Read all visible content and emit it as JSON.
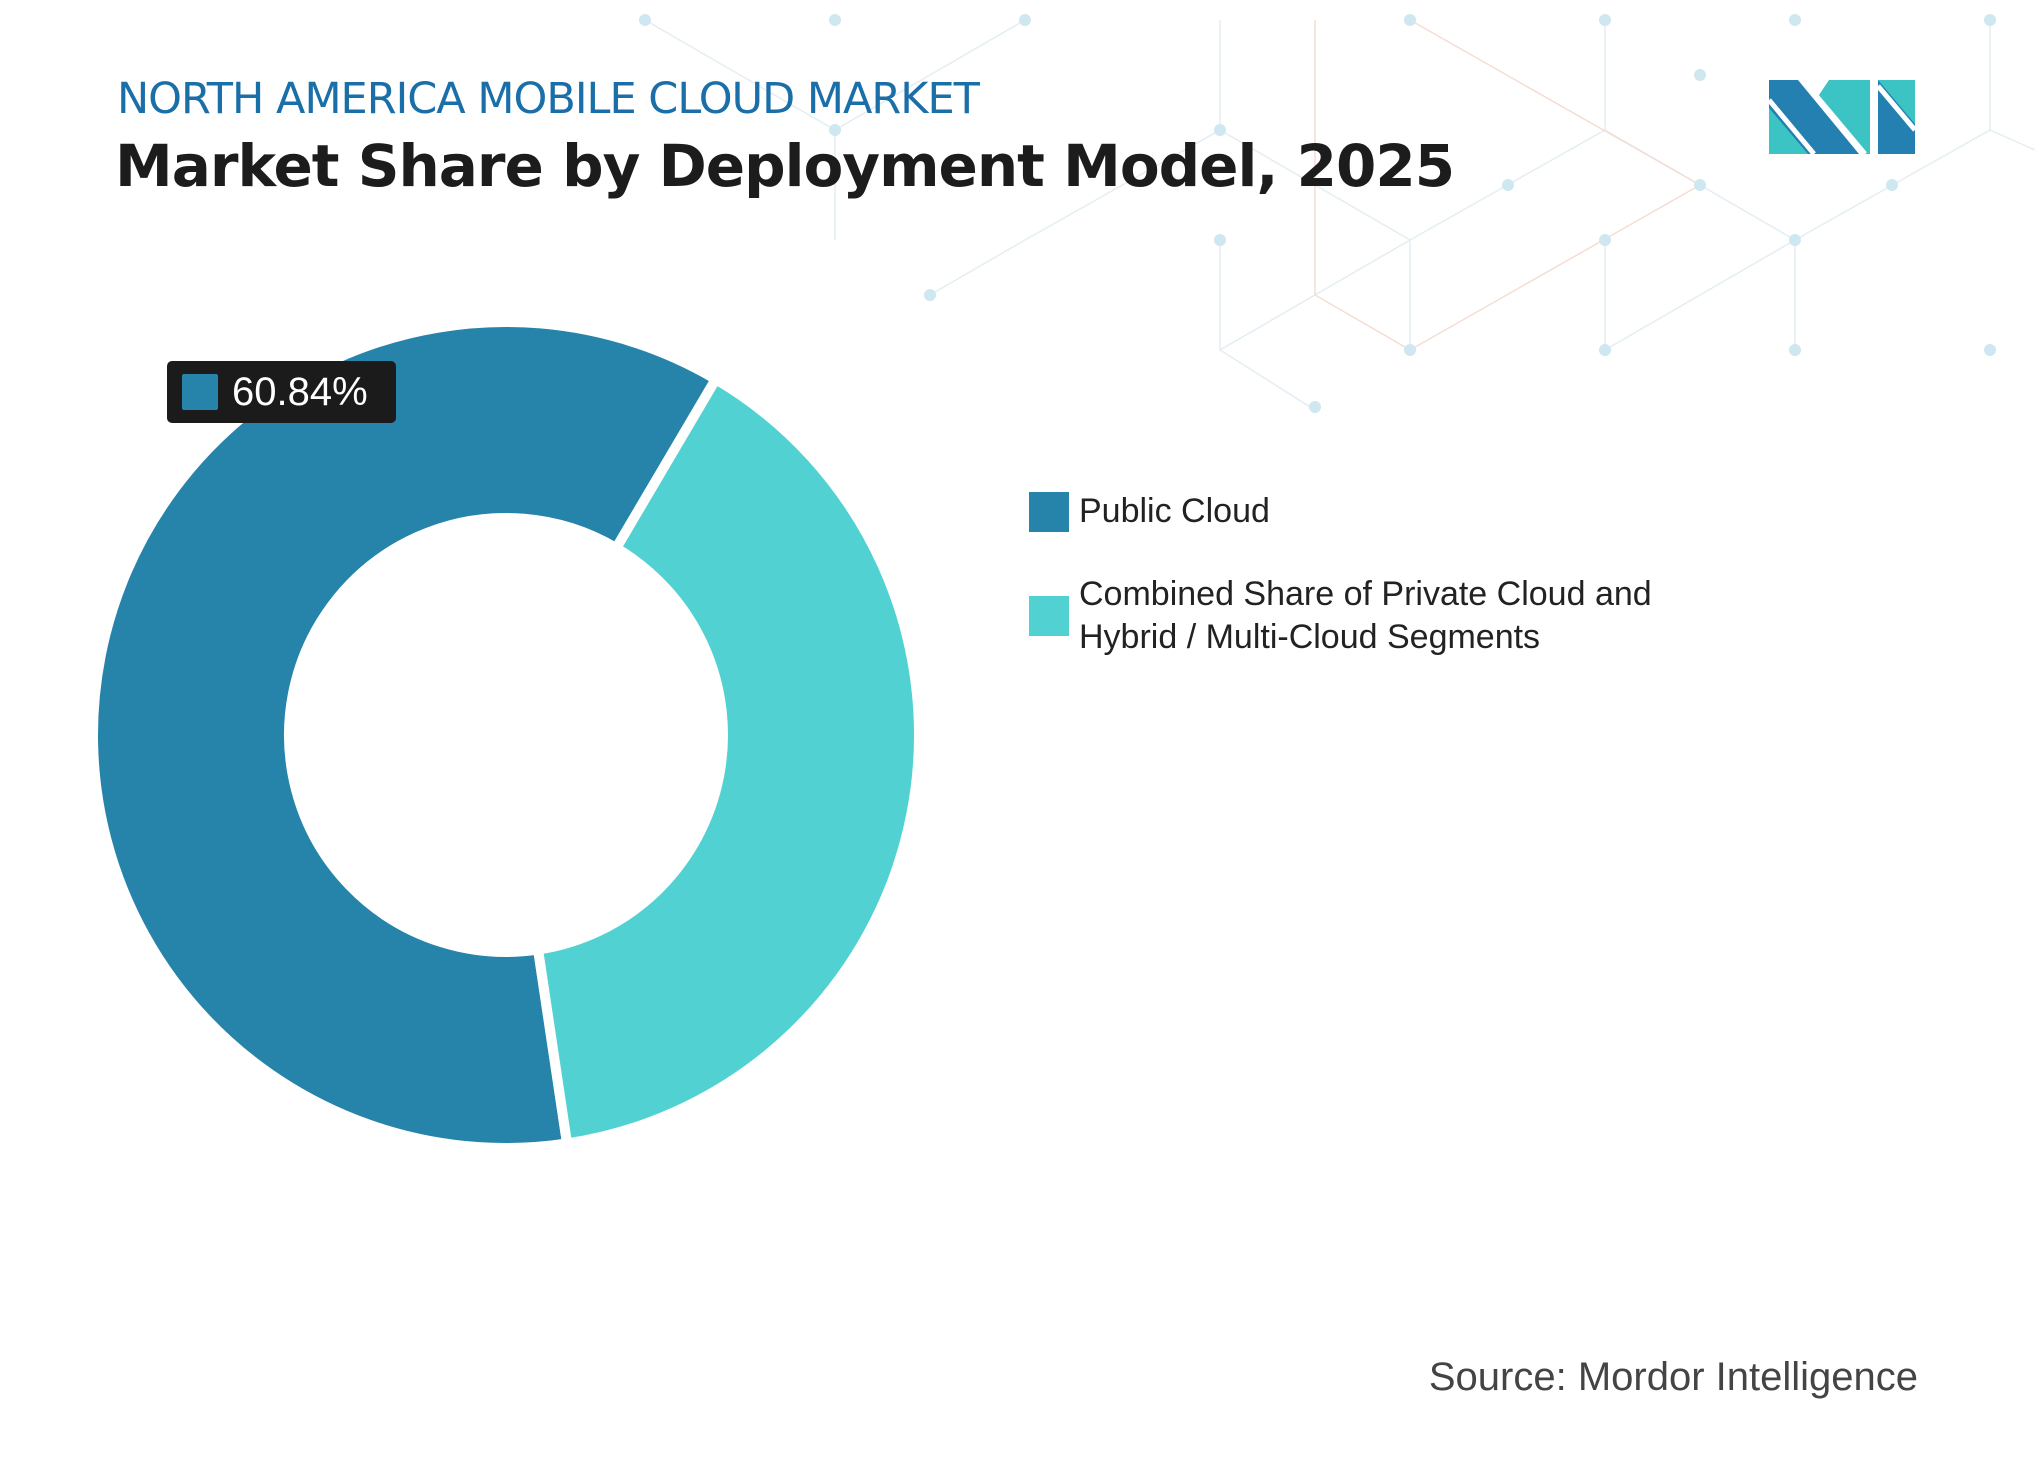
{
  "header": {
    "subtitle": "NORTH AMERICA MOBILE CLOUD MARKET",
    "title": "Market Share by Deployment Model, 2025"
  },
  "chart_data": {
    "type": "pie",
    "style": "donut",
    "title": "Market Share by Deployment Model, 2025",
    "categories": [
      "Public Cloud",
      "Combined Share of Private Cloud and Hybrid / Multi-Cloud Segments"
    ],
    "values": [
      60.84,
      39.16
    ],
    "colors": [
      "#2683aa",
      "#52d1d3"
    ],
    "data_labels": [
      {
        "category": "Public Cloud",
        "text": "60.84%"
      }
    ],
    "legend_position": "right"
  },
  "legend": {
    "items": [
      {
        "label": "Public Cloud",
        "color": "#2683aa"
      },
      {
        "label": "Combined Share of Private Cloud and Hybrid / Multi-Cloud Segments",
        "color": "#52d1d3"
      }
    ]
  },
  "footer": {
    "source": "Source: Mordor Intelligence"
  },
  "logo": {
    "text": "Mordor Intelligence",
    "colors": [
      "#2380b0",
      "#3cc4c4"
    ]
  }
}
